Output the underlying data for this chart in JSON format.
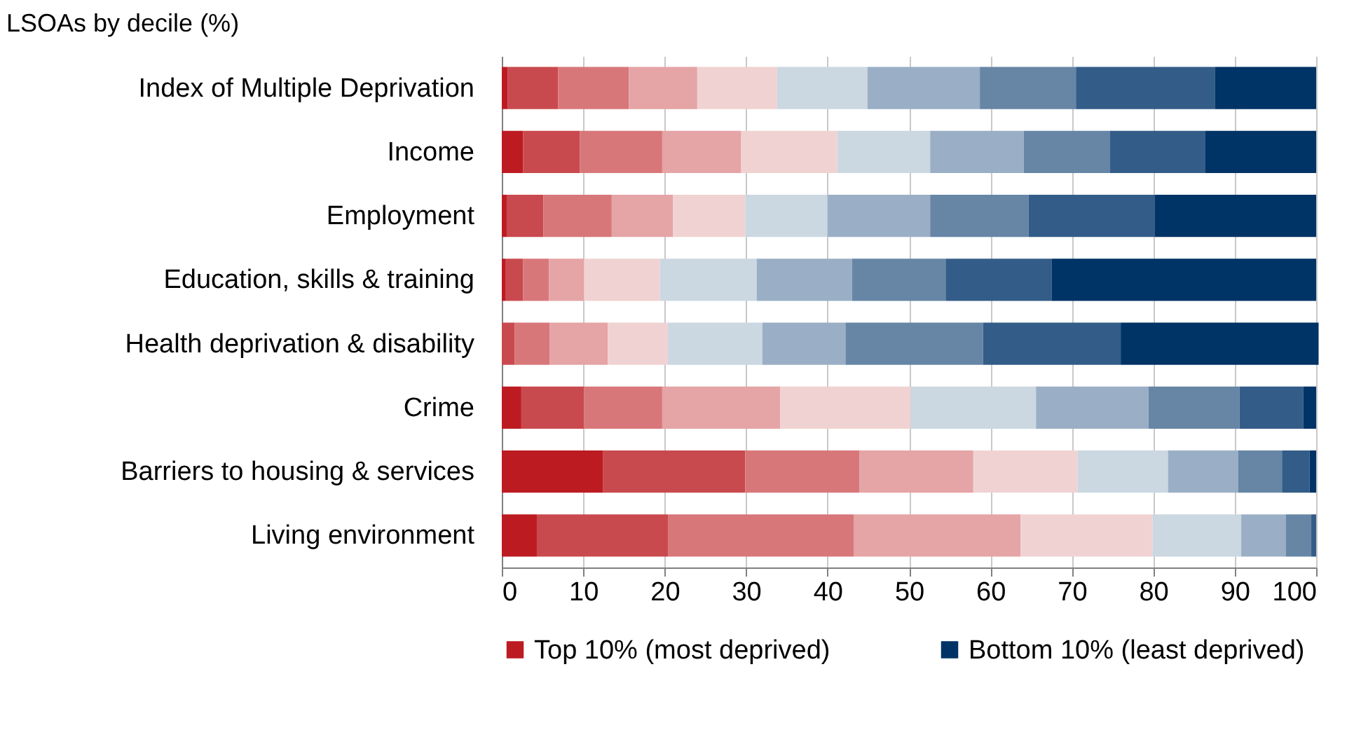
{
  "chart_data": {
    "type": "bar",
    "orientation": "horizontal",
    "stacked": true,
    "ylabel": "LSOAs by decile (%)",
    "categories": [
      "Index of Multiple Deprivation",
      "Income",
      "Employment",
      "Education, skills & training",
      "Health deprivation & disability",
      "Crime",
      "Barriers to housing & services",
      "Living environment"
    ],
    "series": [
      {
        "name": "Top 10% (most deprived)",
        "color": "#bd1b22",
        "values": [
          0.7,
          2.6,
          0.6,
          0.5,
          0,
          2.4,
          12.4,
          4.3
        ]
      },
      {
        "color": "#c94a4e",
        "values": [
          6.2,
          7.0,
          4.5,
          2.1,
          1.6,
          7.7,
          17.5,
          16.1
        ]
      },
      {
        "color": "#d8777a",
        "values": [
          8.7,
          10.1,
          8.4,
          3.2,
          4.3,
          9.6,
          14.0,
          22.8
        ]
      },
      {
        "color": "#e5a4a5",
        "values": [
          8.4,
          9.7,
          7.5,
          4.3,
          7.1,
          14.5,
          14.0,
          20.5
        ]
      },
      {
        "color": "#f1d2d2",
        "values": [
          9.8,
          11.8,
          8.9,
          9.3,
          7.4,
          16.0,
          12.8,
          16.2
        ]
      },
      {
        "color": "#cbd7e1",
        "values": [
          11.1,
          11.4,
          10.1,
          11.9,
          11.6,
          15.4,
          11.1,
          10.9
        ]
      },
      {
        "color": "#9aafc5",
        "values": [
          13.8,
          11.5,
          12.6,
          11.7,
          10.2,
          13.8,
          8.6,
          5.5
        ]
      },
      {
        "color": "#6786a6",
        "values": [
          11.8,
          10.6,
          12.1,
          11.5,
          16.9,
          11.2,
          5.4,
          3.1
        ]
      },
      {
        "color": "#335d88",
        "values": [
          17.1,
          11.7,
          15.5,
          13.0,
          16.9,
          7.8,
          3.4,
          0.6
        ]
      },
      {
        "name": "Bottom 10% (least deprived)",
        "color": "#003366",
        "values": [
          12.4,
          13.6,
          19.8,
          32.5,
          24.3,
          1.6,
          0.8,
          0
        ]
      }
    ],
    "xlim": [
      0,
      100
    ],
    "xticks": [
      0,
      10,
      20,
      30,
      40,
      50,
      60,
      70,
      80,
      90,
      100
    ],
    "grid": "x",
    "legend": "bottom"
  }
}
